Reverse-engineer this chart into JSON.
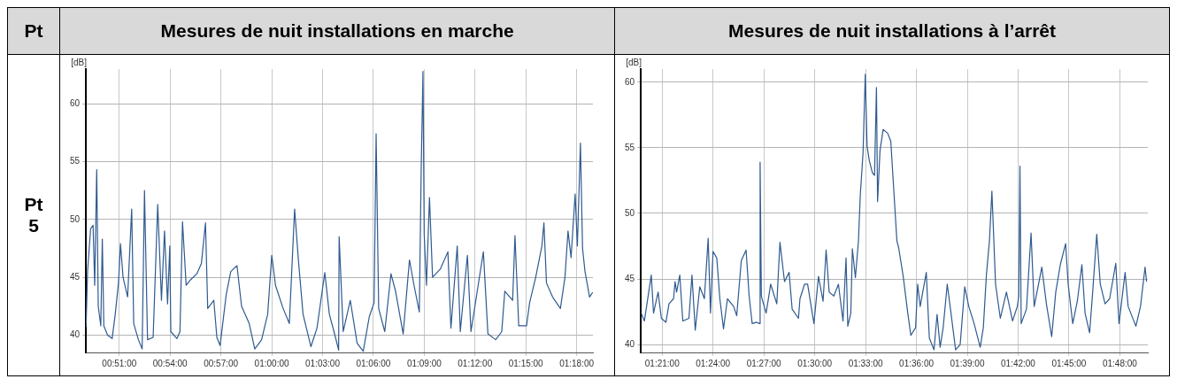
{
  "chart_data": [
    {
      "type": "other",
      "title": "Pt",
      "annotations": [
        "Pt 5"
      ]
    },
    {
      "type": "line",
      "title": "Mesures de nuit installations en marche",
      "ylabel": "[dB]",
      "grid": true,
      "marker": "none",
      "line_style": "solid",
      "xlim": [
        0.8172,
        1.316
      ],
      "xticks": [
        {
          "value": 0.85,
          "label": "00:51:00"
        },
        {
          "value": 0.9,
          "label": "00:54:00"
        },
        {
          "value": 0.95,
          "label": "00:57:00"
        },
        {
          "value": 1.0,
          "label": "01:00:00"
        },
        {
          "value": 1.05,
          "label": "01:03:00"
        },
        {
          "value": 1.1,
          "label": "01:06:00"
        },
        {
          "value": 1.15,
          "label": "01:09:00"
        },
        {
          "value": 1.2,
          "label": "01:12:00"
        },
        {
          "value": 1.25,
          "label": "01:15:00"
        },
        {
          "value": 1.3,
          "label": "01:18:00"
        }
      ],
      "ylim": [
        38.5,
        63
      ],
      "yticks": [
        40,
        45,
        50,
        55,
        60
      ],
      "x": [
        0.8173,
        0.8188,
        0.8218,
        0.8242,
        0.8258,
        0.8278,
        0.8293,
        0.8318,
        0.8333,
        0.8348,
        0.8385,
        0.843,
        0.846,
        0.8492,
        0.8512,
        0.8537,
        0.8582,
        0.8622,
        0.8642,
        0.8688,
        0.8725,
        0.8748,
        0.8778,
        0.8833,
        0.8855,
        0.8878,
        0.8915,
        0.8945,
        0.8975,
        0.8997,
        0.9007,
        0.9067,
        0.9097,
        0.9122,
        0.9158,
        0.9203,
        0.9263,
        0.9308,
        0.9348,
        0.937,
        0.943,
        0.946,
        0.9492,
        0.9552,
        0.9597,
        0.9658,
        0.9703,
        0.9778,
        0.9833,
        0.99,
        0.996,
        1.0,
        1.0037,
        1.0112,
        1.0173,
        1.0225,
        1.0263,
        1.0308,
        1.0385,
        1.0445,
        1.0522,
        1.0567,
        1.0627,
        1.0658,
        1.0663,
        1.0703,
        1.0773,
        1.084,
        1.09,
        1.096,
        1.1007,
        1.1027,
        1.1052,
        1.1112,
        1.1173,
        1.1218,
        1.1293,
        1.1355,
        1.14,
        1.1452,
        1.147,
        1.1488,
        1.15,
        1.1522,
        1.1552,
        1.1582,
        1.1658,
        1.1733,
        1.1763,
        1.1825,
        1.1855,
        1.1925,
        1.196,
        1.2022,
        1.2082,
        1.2127,
        1.2203,
        1.2263,
        1.2293,
        1.237,
        1.2393,
        1.243,
        1.2507,
        1.2537,
        1.2597,
        1.2658,
        1.2678,
        1.2703,
        1.2763,
        1.284,
        1.2885,
        1.2915,
        1.2945,
        1.2985,
        1.3007,
        1.3037,
        1.3058,
        1.3082,
        1.3127,
        1.3158
      ],
      "series": [
        {
          "color": "#2f5a8f",
          "values": [
            40.7,
            45.5,
            49.2,
            49.5,
            44.3,
            54.3,
            42.5,
            40.8,
            48.3,
            40.8,
            40,
            39.7,
            41.8,
            44.5,
            47.9,
            45,
            43.3,
            50.9,
            41,
            39.6,
            38.8,
            52.5,
            39.6,
            39.8,
            45.4,
            51.3,
            43,
            49,
            42.7,
            47.7,
            40.3,
            39.7,
            40.3,
            49.8,
            44.3,
            44.8,
            45.3,
            46.2,
            49.7,
            42.3,
            43,
            39.8,
            39.1,
            43.5,
            45.5,
            46,
            42.5,
            41,
            38.8,
            39.6,
            41.8,
            46.9,
            44.3,
            42.3,
            41,
            50.9,
            46.4,
            41.8,
            39,
            40.6,
            45.4,
            41.8,
            39.8,
            38.7,
            48.5,
            40.3,
            43,
            39.3,
            38.6,
            41.6,
            42.8,
            57.4,
            42.3,
            40.3,
            45.3,
            43.8,
            40.1,
            46.5,
            44.3,
            42,
            54.1,
            62.8,
            48.7,
            44.3,
            51.9,
            45,
            45.7,
            47.2,
            40.6,
            47.7,
            40.3,
            46.9,
            40.3,
            43.8,
            47.2,
            40.1,
            39.6,
            40.3,
            43.8,
            43,
            48.6,
            40.8,
            40.8,
            42.8,
            45,
            47.7,
            49.7,
            44.5,
            43.3,
            42.3,
            45,
            49,
            46.7,
            52.2,
            47.7,
            56.6,
            47.5,
            45.5,
            43.3,
            43.7
          ]
        }
      ]
    },
    {
      "type": "line",
      "title": "Mesures de nuit installations à l’arrêt",
      "ylabel": "[dB]",
      "grid": true,
      "marker": "none",
      "line_style": "solid",
      "xlim": [
        1.329,
        1.8275
      ],
      "xticks": [
        {
          "value": 1.35,
          "label": "01:21:00"
        },
        {
          "value": 1.4,
          "label": "01:24:00"
        },
        {
          "value": 1.45,
          "label": "01:27:00"
        },
        {
          "value": 1.5,
          "label": "01:30:00"
        },
        {
          "value": 1.55,
          "label": "01:33:00"
        },
        {
          "value": 1.6,
          "label": "01:36:00"
        },
        {
          "value": 1.65,
          "label": "01:39:00"
        },
        {
          "value": 1.7,
          "label": "01:42:00"
        },
        {
          "value": 1.75,
          "label": "01:45:00"
        },
        {
          "value": 1.8,
          "label": "01:48:00"
        }
      ],
      "ylim": [
        39.4,
        61
      ],
      "yticks": [
        40,
        45,
        50,
        55,
        60
      ],
      "x": [
        1.3293,
        1.3325,
        1.3393,
        1.3415,
        1.346,
        1.3492,
        1.3537,
        1.3567,
        1.3612,
        1.3627,
        1.3642,
        1.3673,
        1.3703,
        1.3763,
        1.3793,
        1.3825,
        1.387,
        1.3915,
        1.3952,
        1.3975,
        1.4,
        1.4037,
        1.4067,
        1.4103,
        1.4142,
        1.4203,
        1.4233,
        1.4278,
        1.4325,
        1.4355,
        1.4385,
        1.443,
        1.4455,
        1.4463,
        1.4475,
        1.4522,
        1.4567,
        1.4627,
        1.4658,
        1.4703,
        1.4748,
        1.4778,
        1.484,
        1.4855,
        1.49,
        1.493,
        1.4992,
        1.5037,
        1.5082,
        1.5112,
        1.5142,
        1.5188,
        1.5233,
        1.5278,
        1.5308,
        1.5325,
        1.5355,
        1.537,
        1.54,
        1.543,
        1.5448,
        1.5475,
        1.5497,
        1.5515,
        1.5537,
        1.5567,
        1.5588,
        1.5607,
        1.5618,
        1.5642,
        1.5673,
        1.5718,
        1.5748,
        1.577,
        1.5808,
        1.5825,
        1.587,
        1.5915,
        1.5945,
        1.5992,
        1.6012,
        1.6037,
        1.6097,
        1.6127,
        1.6173,
        1.6203,
        1.6233,
        1.6263,
        1.6303,
        1.634,
        1.6385,
        1.643,
        1.6475,
        1.6515,
        1.6567,
        1.6627,
        1.6658,
        1.6688,
        1.6718,
        1.6742,
        1.6778,
        1.6825,
        1.6885,
        1.6945,
        1.6992,
        1.7007,
        1.7018,
        1.703,
        1.7082,
        1.7127,
        1.7158,
        1.7233,
        1.7278,
        1.733,
        1.737,
        1.7415,
        1.7467,
        1.7492,
        1.7537,
        1.7582,
        1.7627,
        1.7658,
        1.7703,
        1.7733,
        1.7773,
        1.7808,
        1.7855,
        1.79,
        1.796,
        1.7992,
        1.8052,
        1.8082,
        1.8158,
        1.8203,
        1.8248,
        1.8263
      ],
      "series": [
        {
          "color": "#2f5a8f",
          "values": [
            42.4,
            41.8,
            45.3,
            42.4,
            44,
            42,
            41.7,
            43.1,
            43.5,
            44.8,
            44,
            45.3,
            41.8,
            42,
            45.3,
            41.1,
            44.4,
            43.5,
            48.1,
            42.4,
            47.1,
            46.6,
            43.5,
            41.2,
            43.5,
            42.9,
            42.2,
            46.4,
            47.2,
            43.7,
            41.6,
            41.7,
            41.6,
            53.9,
            43.7,
            42.4,
            44.6,
            43.1,
            47.8,
            44.8,
            45.5,
            42.7,
            42,
            43.5,
            44.6,
            44.6,
            41.6,
            45.2,
            43.3,
            47.2,
            44,
            43.7,
            44.6,
            41.8,
            46.6,
            41.4,
            42.4,
            47.3,
            45.1,
            47.9,
            51.4,
            54.6,
            60.6,
            55.1,
            54,
            53.1,
            52.9,
            59.6,
            50.9,
            54.8,
            56.4,
            56.1,
            55.5,
            52.7,
            47.9,
            47.4,
            45.2,
            42.4,
            40.7,
            41.3,
            44.6,
            42.9,
            45.5,
            40.5,
            39.6,
            42.3,
            39.8,
            41.3,
            44.6,
            42.4,
            39.6,
            40,
            44.4,
            42.9,
            41.6,
            39.8,
            41.3,
            45.3,
            47.9,
            51.7,
            44.6,
            42,
            44,
            41.8,
            42.9,
            43.7,
            53.6,
            41.6,
            42.7,
            48.5,
            42.9,
            45.9,
            43.1,
            40.6,
            44,
            46.1,
            47.7,
            44.6,
            41.6,
            43.3,
            46.1,
            42.4,
            40.9,
            44,
            48.4,
            44.6,
            43.1,
            43.5,
            46.2,
            41.6,
            45.5,
            42.9,
            41.4,
            42.9,
            45.9,
            44.8
          ]
        }
      ]
    }
  ]
}
